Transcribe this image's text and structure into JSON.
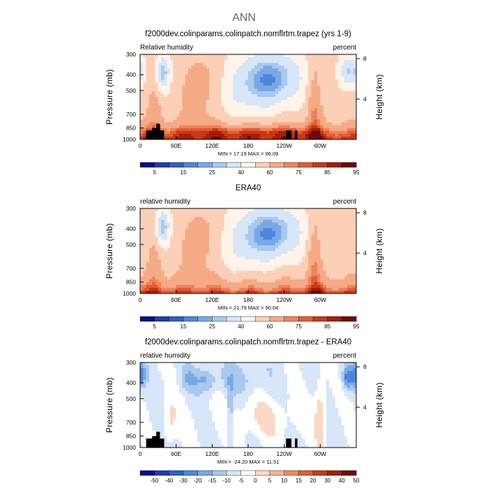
{
  "figure": {
    "title": "ANN"
  },
  "colors": {
    "humidity_scale": [
      "#0a0a8c",
      "#1e3ea8",
      "#2a62c9",
      "#4b86dd",
      "#7aa8e6",
      "#a9c8f0",
      "#d7e6f8",
      "#fff3ea",
      "#fbd0b6",
      "#f5aa86",
      "#ee835c",
      "#e45b36",
      "#cc3614",
      "#a61c08",
      "#6e0a02"
    ],
    "diff_scale": [
      "#0a0a8c",
      "#1e3ea8",
      "#2a62c9",
      "#4b86dd",
      "#7aa8e6",
      "#a9c8f0",
      "#d7e6f8",
      "#ffffff",
      "#fbd8c4",
      "#f5b394",
      "#ee8a63",
      "#e45b36",
      "#cc3614",
      "#a61c08",
      "#6e0a02"
    ],
    "terrain": "#000000"
  },
  "chart_data": [
    {
      "type": "heatmap",
      "title": "f2000dev.colinparams.colinpatch.nomflrtm.trapez (yrs 1-9)",
      "left_label": "Relative humidity",
      "right_label": "percent",
      "ylabel": "Pressure (mb)",
      "ylabel_right": "Height (km)",
      "x_ticks": [
        "0",
        "60E",
        "120E",
        "180",
        "120W",
        "60W"
      ],
      "x_tick_lon": [
        0,
        60,
        120,
        180,
        240,
        300
      ],
      "xlim": [
        0,
        360
      ],
      "y_ticks": [
        "300",
        "400",
        "500",
        "700",
        "850",
        "1000"
      ],
      "y_tick_p": [
        300,
        400,
        500,
        700,
        850,
        1000
      ],
      "ylim": [
        300,
        1000
      ],
      "y_scale": "log",
      "right_ticks": [
        "8",
        "4"
      ],
      "right_tick_km": [
        8,
        4
      ],
      "minmax_text": "MIN =   17.19   MAX =   96.09",
      "min": 17.19,
      "max": 96.09,
      "colorbar": {
        "levels": [
          5,
          10,
          15,
          20,
          25,
          30,
          40,
          50,
          60,
          70,
          75,
          80,
          85,
          90,
          95
        ],
        "labels": [
          "5",
          "15",
          "25",
          "40",
          "60",
          "75",
          "85",
          "95"
        ],
        "label_index": [
          0,
          2,
          4,
          6,
          8,
          10,
          12,
          14
        ]
      },
      "scale": "humidity"
    },
    {
      "type": "heatmap",
      "title": "ERA40",
      "left_label": "relative humidity",
      "right_label": "percent",
      "ylabel": "Pressure (mb)",
      "ylabel_right": "Height (km)",
      "x_ticks": [
        "0",
        "60E",
        "120E",
        "180",
        "120W",
        "60W"
      ],
      "x_tick_lon": [
        0,
        60,
        120,
        180,
        240,
        300
      ],
      "xlim": [
        0,
        360
      ],
      "y_ticks": [
        "300",
        "400",
        "500",
        "700",
        "850",
        "1000"
      ],
      "y_tick_p": [
        300,
        400,
        500,
        700,
        850,
        1000
      ],
      "ylim": [
        300,
        1000
      ],
      "y_scale": "log",
      "right_ticks": [
        "8",
        "4"
      ],
      "right_tick_km": [
        8,
        4
      ],
      "minmax_text": "MIN =   21.79   MAX =   90.04",
      "min": 21.79,
      "max": 90.04,
      "colorbar": {
        "levels": [
          5,
          10,
          15,
          20,
          25,
          30,
          40,
          50,
          60,
          70,
          75,
          80,
          85,
          90,
          95
        ],
        "labels": [
          "5",
          "15",
          "25",
          "40",
          "60",
          "75",
          "85",
          "95"
        ],
        "label_index": [
          0,
          2,
          4,
          6,
          8,
          10,
          12,
          14
        ]
      },
      "scale": "humidity"
    },
    {
      "type": "heatmap",
      "title": "f2000dev.colinparams.colinpatch.nomflrtm.trapez - ERA40",
      "left_label": "relative humidity",
      "right_label": "percent",
      "ylabel": "Pressure (mb)",
      "ylabel_right": "Height (km)",
      "x_ticks": [
        "0",
        "60E",
        "120E",
        "180",
        "120W",
        "60W"
      ],
      "x_tick_lon": [
        0,
        60,
        120,
        180,
        240,
        300
      ],
      "xlim": [
        0,
        360
      ],
      "y_ticks": [
        "300",
        "400",
        "500",
        "700",
        "850",
        "1000"
      ],
      "y_tick_p": [
        300,
        400,
        500,
        700,
        850,
        1000
      ],
      "ylim": [
        300,
        1000
      ],
      "y_scale": "log",
      "right_ticks": [
        "8",
        "4"
      ],
      "right_tick_km": [
        8,
        4
      ],
      "minmax_text": "MIN =  -24.20   MAX =   11.51",
      "min": -24.2,
      "max": 11.51,
      "colorbar": {
        "levels": [
          -50,
          -40,
          -30,
          -20,
          -15,
          -10,
          -5,
          0,
          5,
          10,
          15,
          20,
          30,
          40,
          50
        ],
        "labels": [
          "-50",
          "-40",
          "-30",
          "-20",
          "-15",
          "-10",
          "-5",
          "0",
          "5",
          "10",
          "15",
          "20",
          "30",
          "40",
          "50"
        ],
        "label_index": [
          0,
          1,
          2,
          3,
          4,
          5,
          6,
          7,
          8,
          9,
          10,
          11,
          12,
          13,
          14
        ]
      },
      "scale": "diff"
    }
  ]
}
